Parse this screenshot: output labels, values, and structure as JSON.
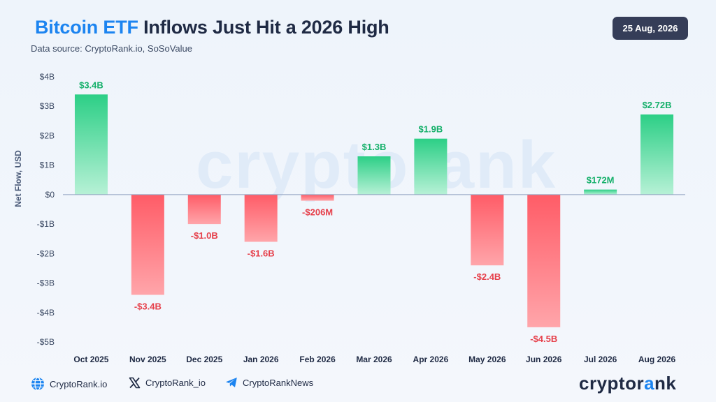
{
  "header": {
    "title_accent": "Bitcoin ETF",
    "title_rest": " Inflows Just Hit a 2026 High",
    "subtitle": "Data source: CryptoRank.io, SoSoValue",
    "date": "25 Aug, 2026"
  },
  "watermark": {
    "text": "cryptorank"
  },
  "footer": {
    "website": "CryptoRank.io",
    "twitter": "CryptoRank_io",
    "telegram": "CryptoRankNews",
    "brand_pre": "cryptor",
    "brand_a": "a",
    "brand_post": "nk"
  },
  "colors": {
    "positive_top": "#2ccf86",
    "positive_bottom": "#b7f1d6",
    "negative_top": "#ff5c67",
    "negative_bottom": "#ffa5aa",
    "positive_label": "#15b06a",
    "negative_label": "#e6404b",
    "accent": "#1c84f0"
  },
  "chart_data": {
    "type": "bar",
    "title": "Bitcoin ETF Inflows Just Hit a 2026 High",
    "ylabel": "Net Flow, USD",
    "xlabel": "",
    "ylim": [
      -5,
      4
    ],
    "yticks": [
      4,
      3,
      2,
      1,
      0,
      -1,
      -2,
      -3,
      -4,
      -5
    ],
    "ytick_labels": [
      "$4B",
      "$3B",
      "$2B",
      "$1B",
      "$0",
      "-$1B",
      "-$2B",
      "-$3B",
      "-$4B",
      "-$5B"
    ],
    "categories": [
      "Oct 2025",
      "Nov 2025",
      "Dec 2025",
      "Jan 2026",
      "Feb 2026",
      "Mar 2026",
      "Apr 2026",
      "May 2026",
      "Jun 2026",
      "Jul 2026",
      "Aug 2026"
    ],
    "values": [
      3.4,
      -3.4,
      -1.0,
      -1.6,
      -0.206,
      1.3,
      1.9,
      -2.4,
      -4.5,
      0.172,
      2.72
    ],
    "value_labels": [
      "$3.4B",
      "-$3.4B",
      "-$1.0B",
      "-$1.6B",
      "-$206M",
      "$1.3B",
      "$1.9B",
      "-$2.4B",
      "-$4.5B",
      "$172M",
      "$2.72B"
    ],
    "unit": "billion USD",
    "grid": false
  }
}
